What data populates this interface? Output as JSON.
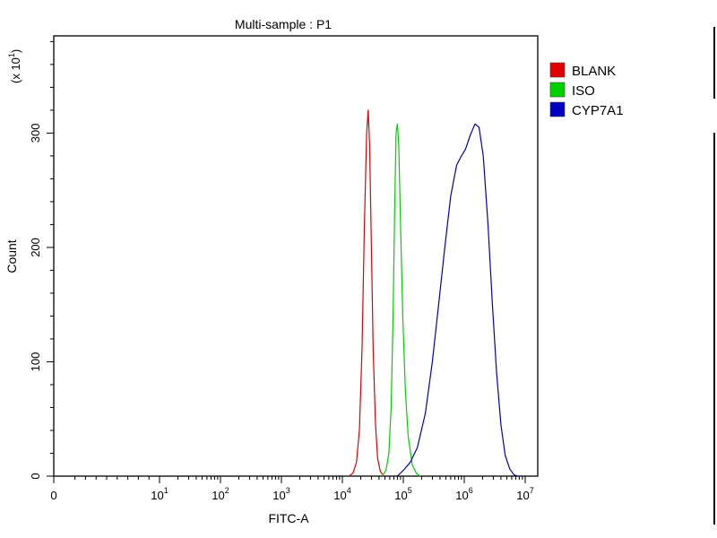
{
  "chart_data": {
    "type": "line",
    "title": "Multi-sample : P1",
    "xlabel": "FITC-A",
    "ylabel": "Count",
    "y_multiplier": "(x 10",
    "y_multiplier_exp": "1",
    "y_multiplier_close": ")",
    "x_scale": "log",
    "xlim": [
      0,
      10000000
    ],
    "ylim": [
      0,
      385
    ],
    "grid": false,
    "legend_position": "top-right",
    "x_ticks": [
      {
        "value": 0,
        "base": "0",
        "exp": ""
      },
      {
        "value": 10,
        "base": "10",
        "exp": "1"
      },
      {
        "value": 100,
        "base": "10",
        "exp": "2"
      },
      {
        "value": 1000,
        "base": "10",
        "exp": "3"
      },
      {
        "value": 10000,
        "base": "10",
        "exp": "4"
      },
      {
        "value": 100000,
        "base": "10",
        "exp": "5"
      },
      {
        "value": 1000000,
        "base": "10",
        "exp": "6"
      },
      {
        "value": 10000000,
        "base": "10",
        "exp": "7"
      }
    ],
    "y_ticks": [
      0,
      100,
      200,
      300
    ],
    "series": [
      {
        "name": "BLANK",
        "color": "#e00000",
        "points": [
          [
            13000,
            0
          ],
          [
            15000,
            3
          ],
          [
            17000,
            12
          ],
          [
            19000,
            40
          ],
          [
            21000,
            110
          ],
          [
            23000,
            220
          ],
          [
            25000,
            300
          ],
          [
            26500,
            320
          ],
          [
            28000,
            290
          ],
          [
            30000,
            200
          ],
          [
            32000,
            110
          ],
          [
            35000,
            45
          ],
          [
            38000,
            15
          ],
          [
            42000,
            4
          ],
          [
            48000,
            0
          ]
        ]
      },
      {
        "name": "ISO",
        "color": "#00d000",
        "points": [
          [
            45000,
            0
          ],
          [
            52000,
            5
          ],
          [
            58000,
            20
          ],
          [
            63000,
            60
          ],
          [
            68000,
            140
          ],
          [
            72000,
            230
          ],
          [
            76000,
            300
          ],
          [
            80000,
            308
          ],
          [
            84000,
            290
          ],
          [
            90000,
            220
          ],
          [
            98000,
            140
          ],
          [
            108000,
            75
          ],
          [
            120000,
            35
          ],
          [
            140000,
            10
          ],
          [
            165000,
            2
          ],
          [
            190000,
            0
          ]
        ]
      },
      {
        "name": "CYP7A1",
        "color": "#0000c0",
        "points": [
          [
            80000,
            0
          ],
          [
            100000,
            5
          ],
          [
            130000,
            12
          ],
          [
            170000,
            25
          ],
          [
            230000,
            55
          ],
          [
            300000,
            100
          ],
          [
            380000,
            150
          ],
          [
            480000,
            200
          ],
          [
            600000,
            245
          ],
          [
            750000,
            272
          ],
          [
            900000,
            280
          ],
          [
            1050000,
            286
          ],
          [
            1250000,
            298
          ],
          [
            1500000,
            308
          ],
          [
            1750000,
            305
          ],
          [
            2050000,
            280
          ],
          [
            2450000,
            220
          ],
          [
            2900000,
            150
          ],
          [
            3400000,
            90
          ],
          [
            4000000,
            45
          ],
          [
            4700000,
            18
          ],
          [
            5600000,
            6
          ],
          [
            6600000,
            1
          ],
          [
            7500000,
            0
          ]
        ]
      }
    ]
  }
}
